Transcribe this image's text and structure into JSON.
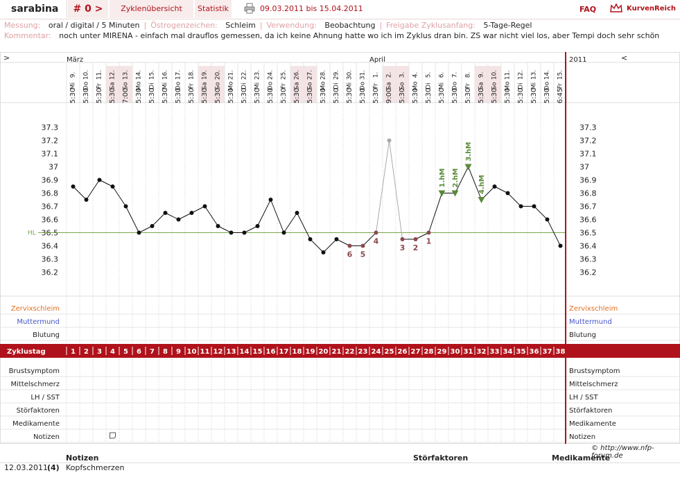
{
  "header": {
    "user": "sarabina",
    "cycle_label": "# 0 >",
    "tab_cycles": "Zyklenübersicht",
    "tab_stats": "Statistik",
    "print_icon": "printer-icon",
    "date_range": "09.03.2011 bis 15.04.2011",
    "faq": "FAQ",
    "logo": "KurvenReich"
  },
  "meta": {
    "messung_label": "Messung:",
    "messung_value": "oral / digital / 5 Minuten",
    "oestrogen_label": "Östrogenzeichen:",
    "oestrogen_value": "Schleim",
    "verwendung_label": "Verwendung:",
    "verwendung_value": "Beobachtung",
    "freigabe_label": "Freigabe Zyklusanfang:",
    "freigabe_value": "5-Tage-Regel",
    "kommentar_label": "Kommentar:",
    "kommentar_value": "noch unter MIRENA - einfach mal drauflos gemessen, da ich keine Ahnung hatte wo ich im Zyklus dran bin. ZS war nicht viel los, aber Tempi doch sehr schön"
  },
  "nav": {
    "left": ">",
    "right": "<",
    "year": "2011"
  },
  "months": [
    {
      "label": "März",
      "start_index": 0
    },
    {
      "label": "April",
      "start_index": 23
    }
  ],
  "days": [
    {
      "d": "9.",
      "wd": "Mi",
      "time": "5:30",
      "weekend": false
    },
    {
      "d": "10.",
      "wd": "Do",
      "time": "5:30",
      "weekend": false
    },
    {
      "d": "11.",
      "wd": "Fr",
      "time": "5:30",
      "weekend": false
    },
    {
      "d": "12.",
      "wd": "Sa",
      "time": "5:30",
      "weekend": true
    },
    {
      "d": "13.",
      "wd": "So",
      "time": "7:00",
      "weekend": true
    },
    {
      "d": "14.",
      "wd": "Mo",
      "time": "5:30",
      "weekend": false
    },
    {
      "d": "15.",
      "wd": "Di",
      "time": "5:30",
      "weekend": false
    },
    {
      "d": "16.",
      "wd": "Mi",
      "time": "5:30",
      "weekend": false
    },
    {
      "d": "17.",
      "wd": "Do",
      "time": "5:30",
      "weekend": false
    },
    {
      "d": "18.",
      "wd": "Fr",
      "time": "5:30",
      "weekend": false
    },
    {
      "d": "19.",
      "wd": "Sa",
      "time": "5:30",
      "weekend": true
    },
    {
      "d": "20.",
      "wd": "So",
      "time": "5:30",
      "weekend": true
    },
    {
      "d": "21.",
      "wd": "Mo",
      "time": "5:30",
      "weekend": false
    },
    {
      "d": "22.",
      "wd": "Di",
      "time": "5:30",
      "weekend": false
    },
    {
      "d": "23.",
      "wd": "Mi",
      "time": "5:30",
      "weekend": false
    },
    {
      "d": "24.",
      "wd": "Do",
      "time": "5:30",
      "weekend": false
    },
    {
      "d": "25.",
      "wd": "Fr",
      "time": "5:30",
      "weekend": false
    },
    {
      "d": "26.",
      "wd": "Sa",
      "time": "5:30",
      "weekend": true
    },
    {
      "d": "27.",
      "wd": "So",
      "time": "5:30",
      "weekend": true
    },
    {
      "d": "28.",
      "wd": "Mo",
      "time": "5:30",
      "weekend": false
    },
    {
      "d": "29.",
      "wd": "Di",
      "time": "5:30",
      "weekend": false
    },
    {
      "d": "30.",
      "wd": "Mi",
      "time": "5:30",
      "weekend": false
    },
    {
      "d": "31.",
      "wd": "Do",
      "time": "5:30",
      "weekend": false
    },
    {
      "d": "1.",
      "wd": "Fr",
      "time": "5:30",
      "weekend": false
    },
    {
      "d": "2.",
      "wd": "Sa",
      "time": "9:00",
      "weekend": true
    },
    {
      "d": "3.",
      "wd": "So",
      "time": "5:30",
      "weekend": true
    },
    {
      "d": "4.",
      "wd": "Mo",
      "time": "5:30",
      "weekend": false
    },
    {
      "d": "5.",
      "wd": "Di",
      "time": "5:30",
      "weekend": false
    },
    {
      "d": "6.",
      "wd": "Mi",
      "time": "5:30",
      "weekend": false
    },
    {
      "d": "7.",
      "wd": "Do",
      "time": "5:30",
      "weekend": false
    },
    {
      "d": "8.",
      "wd": "Fr",
      "time": "5:30",
      "weekend": false
    },
    {
      "d": "9.",
      "wd": "Sa",
      "time": "5:30",
      "weekend": true
    },
    {
      "d": "10.",
      "wd": "So",
      "time": "5:30",
      "weekend": true
    },
    {
      "d": "11.",
      "wd": "Mo",
      "time": "5:30",
      "weekend": false
    },
    {
      "d": "12.",
      "wd": "Di",
      "time": "5:30",
      "weekend": false
    },
    {
      "d": "13.",
      "wd": "Mi",
      "time": "5:30",
      "weekend": false
    },
    {
      "d": "14.",
      "wd": "Do",
      "time": "5:30",
      "weekend": false
    },
    {
      "d": "15.",
      "wd": "Fr",
      "time": "6:45",
      "weekend": false
    }
  ],
  "chart_data": {
    "type": "line",
    "x": [
      1,
      2,
      3,
      4,
      5,
      6,
      7,
      8,
      9,
      10,
      11,
      12,
      13,
      14,
      15,
      16,
      17,
      18,
      19,
      20,
      21,
      22,
      23,
      24,
      25,
      26,
      27,
      28,
      29,
      30,
      31,
      32,
      33,
      34,
      35,
      36,
      37,
      38
    ],
    "values": [
      36.85,
      36.75,
      36.9,
      36.85,
      36.7,
      36.5,
      36.55,
      36.65,
      36.6,
      36.65,
      36.7,
      36.55,
      36.5,
      36.5,
      36.55,
      36.75,
      36.5,
      36.65,
      36.45,
      36.35,
      36.45,
      36.4,
      36.4,
      36.5,
      37.2,
      36.45,
      36.45,
      36.5,
      36.8,
      36.8,
      37.0,
      36.75,
      36.85,
      36.8,
      36.7,
      36.7,
      36.6,
      36.4
    ],
    "excluded_day": 25,
    "ylim": [
      36.2,
      37.3
    ],
    "yticks": [
      "37.3",
      "37.2",
      "37.1",
      "37",
      "36.9",
      "36.8",
      "36.7",
      "36.6",
      "36.5",
      "36.4",
      "36.3",
      "36.2"
    ],
    "hl_label": "HL",
    "hl_value": 36.5,
    "low_labels": [
      {
        "day": 22,
        "label": "6"
      },
      {
        "day": 23,
        "label": "5"
      },
      {
        "day": 24,
        "label": "4"
      },
      {
        "day": 26,
        "label": "3"
      },
      {
        "day": 27,
        "label": "2"
      },
      {
        "day": 28,
        "label": "1"
      }
    ],
    "high_labels": [
      {
        "day": 29,
        "label": "1.hM"
      },
      {
        "day": 30,
        "label": "2.hM"
      },
      {
        "day": 31,
        "label": "3.hM"
      },
      {
        "day": 32,
        "label": "4.hM"
      }
    ],
    "grid": true
  },
  "rows_top": [
    {
      "label": "Zervixschleim",
      "color": "#e07020"
    },
    {
      "label": "Muttermund",
      "color": "#4455cc"
    },
    {
      "label": "Blutung",
      "color": "#222222"
    }
  ],
  "zyklustag": {
    "label": "Zyklustag",
    "days": [
      "1",
      "2",
      "3",
      "4",
      "5",
      "6",
      "7",
      "8",
      "9",
      "10",
      "11",
      "12",
      "13",
      "14",
      "15",
      "16",
      "17",
      "18",
      "19",
      "20",
      "21",
      "22",
      "23",
      "24",
      "25",
      "26",
      "27",
      "28",
      "29",
      "30",
      "31",
      "32",
      "33",
      "34",
      "35",
      "36",
      "37",
      "38"
    ]
  },
  "rows_bottom": [
    {
      "label": "Brustsymptom"
    },
    {
      "label": "Mittelschmerz"
    },
    {
      "label": "LH / SST"
    },
    {
      "label": "Störfaktoren"
    },
    {
      "label": "Medikamente"
    },
    {
      "label": "Notizen"
    }
  ],
  "note_icon_day": 4,
  "credit": "© http://www.nfp-forum.de",
  "notes_table": {
    "headers": {
      "notizen": "Notizen",
      "stoerfaktoren": "Störfaktoren",
      "medikamente": "Medikamente"
    },
    "rows": [
      {
        "date": "12.03.2011",
        "day": "(4)",
        "note": "Kopfschmerzen"
      }
    ]
  },
  "colors": {
    "accent": "#b0121b",
    "weekend": "#f4e4e6",
    "hl": "#7aa84a",
    "high": "#5a8a3a",
    "low": "#8a4a4e",
    "grid": "#ccc"
  }
}
